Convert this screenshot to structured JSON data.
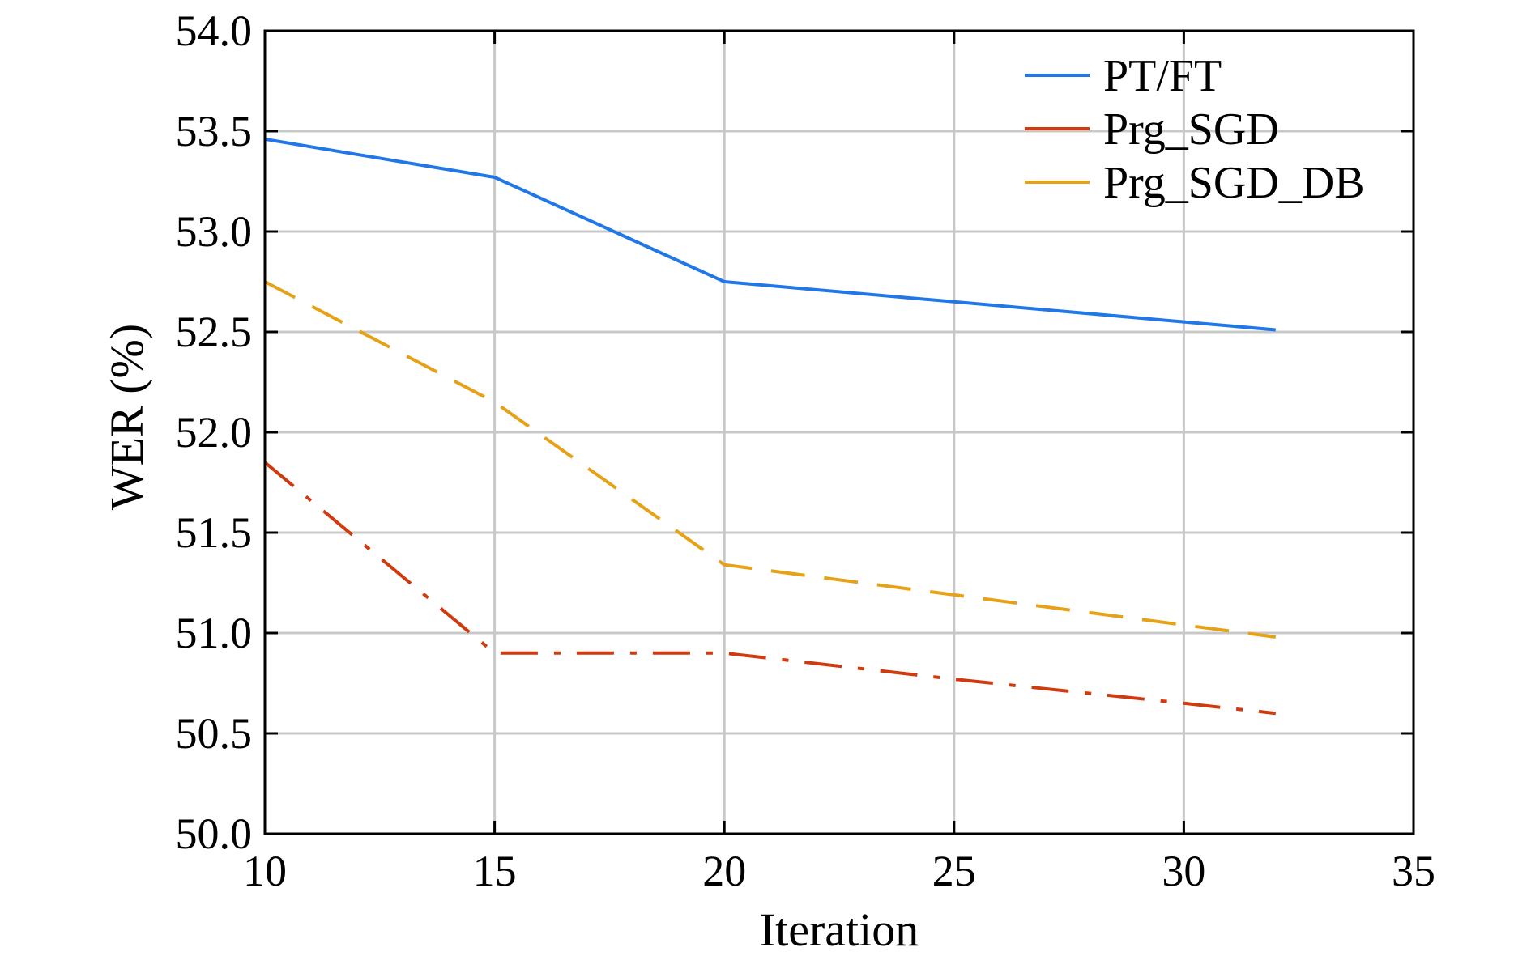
{
  "chart_data": {
    "type": "line",
    "title": "",
    "xlabel": "Iteration",
    "ylabel": "WER (%)",
    "xlim": [
      10,
      35
    ],
    "ylim": [
      50.0,
      54.0
    ],
    "x_ticks": [
      "10",
      "15",
      "20",
      "25",
      "30",
      "35"
    ],
    "y_ticks": [
      "50.0",
      "50.5",
      "51.0",
      "51.5",
      "52.0",
      "52.5",
      "53.0",
      "53.5",
      "54.0"
    ],
    "grid": true,
    "legend_position": "top-right",
    "series": [
      {
        "name": "PT/FT",
        "color": "#1f77e8",
        "line_style": "solid",
        "x": [
          10,
          15,
          20,
          25,
          30,
          32
        ],
        "y": [
          53.46,
          53.27,
          52.75,
          52.65,
          52.55,
          52.51
        ]
      },
      {
        "name": "Prg_SGD",
        "color": "#d03a0f",
        "line_style": "dashdot",
        "x": [
          10,
          15,
          20,
          25,
          30,
          32
        ],
        "y": [
          51.85,
          50.9,
          50.9,
          50.77,
          50.65,
          50.6
        ]
      },
      {
        "name": "Prg_SGD_DB",
        "color": "#e6a117",
        "line_style": "dashed",
        "x": [
          10,
          15,
          20,
          25,
          30,
          32
        ],
        "y": [
          52.75,
          52.15,
          51.34,
          51.19,
          51.04,
          50.98
        ]
      }
    ]
  }
}
